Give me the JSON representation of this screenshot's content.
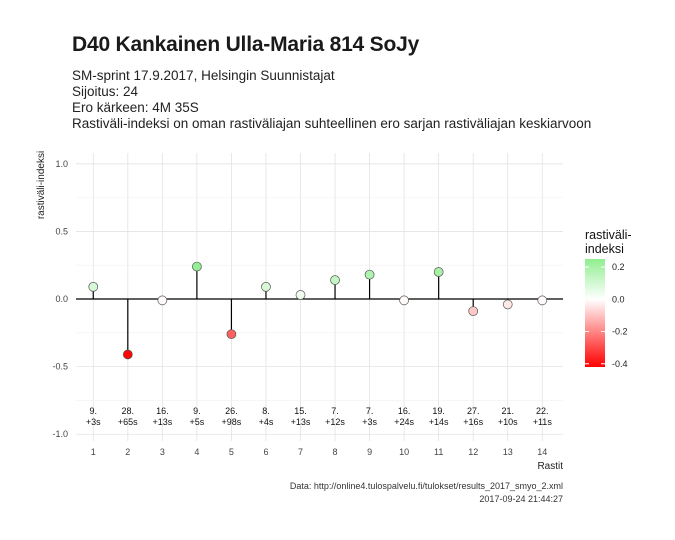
{
  "title": "D40 Kankainen Ulla-Maria 814 SoJy",
  "subtitle_lines": [
    "SM-sprint 17.9.2017, Helsingin Suunnistajat",
    "Sijoitus: 24",
    "Ero kärkeen: 4M 35S",
    "Rastiväli-indeksi on oman rastiväliajan suhteellinen ero sarjan rastiväliajan keskiarvoon"
  ],
  "caption_lines": [
    "Data: http://online4.tulospalvelu.fi/tulokset/results_2017_smyo_2.xml",
    "2017-09-24 21:44:27"
  ],
  "chart_data": {
    "type": "scatter",
    "xlabel": "Rastit",
    "ylabel": "rastiväli-indeksi",
    "x": [
      1,
      2,
      3,
      4,
      5,
      6,
      7,
      8,
      9,
      10,
      11,
      12,
      13,
      14
    ],
    "y": [
      0.09,
      -0.41,
      -0.01,
      0.24,
      -0.26,
      0.09,
      0.03,
      0.14,
      0.18,
      -0.01,
      0.2,
      -0.09,
      -0.04,
      -0.01
    ],
    "point_labels": [
      [
        "9.",
        "+3s"
      ],
      [
        "28.",
        "+65s"
      ],
      [
        "16.",
        "+13s"
      ],
      [
        "9.",
        "+5s"
      ],
      [
        "26.",
        "+98s"
      ],
      [
        "8.",
        "+4s"
      ],
      [
        "15.",
        "+13s"
      ],
      [
        "7.",
        "+12s"
      ],
      [
        "7.",
        "+3s"
      ],
      [
        "16.",
        "+24s"
      ],
      [
        "19.",
        "+14s"
      ],
      [
        "27.",
        "+16s"
      ],
      [
        "21.",
        "+10s"
      ],
      [
        "22.",
        "+11s"
      ]
    ],
    "xticks": [
      1,
      2,
      3,
      4,
      5,
      6,
      7,
      8,
      9,
      10,
      11,
      12,
      13,
      14
    ],
    "yticks": [
      1.0,
      0.5,
      0.0,
      -0.5,
      -1.0
    ],
    "ytick_labels": [
      "1.0",
      "0.5",
      "0.0",
      "-0.5",
      "-1.0"
    ],
    "xlim": [
      0.5,
      14.6
    ],
    "ylim": [
      -1.05,
      1.08
    ],
    "grid": true,
    "legend": {
      "title_lines": [
        "rastiväli-",
        "indeksi"
      ],
      "placement": "right",
      "ticks": [
        0.2,
        0.0,
        -0.2,
        -0.4
      ],
      "tick_labels": [
        "0.2",
        "0.0",
        "-0.2",
        "-0.4"
      ],
      "range": [
        -0.42,
        0.25
      ],
      "color_low": "#ff0000",
      "color_mid": "#ffffff",
      "color_high": "#90ee90"
    }
  }
}
